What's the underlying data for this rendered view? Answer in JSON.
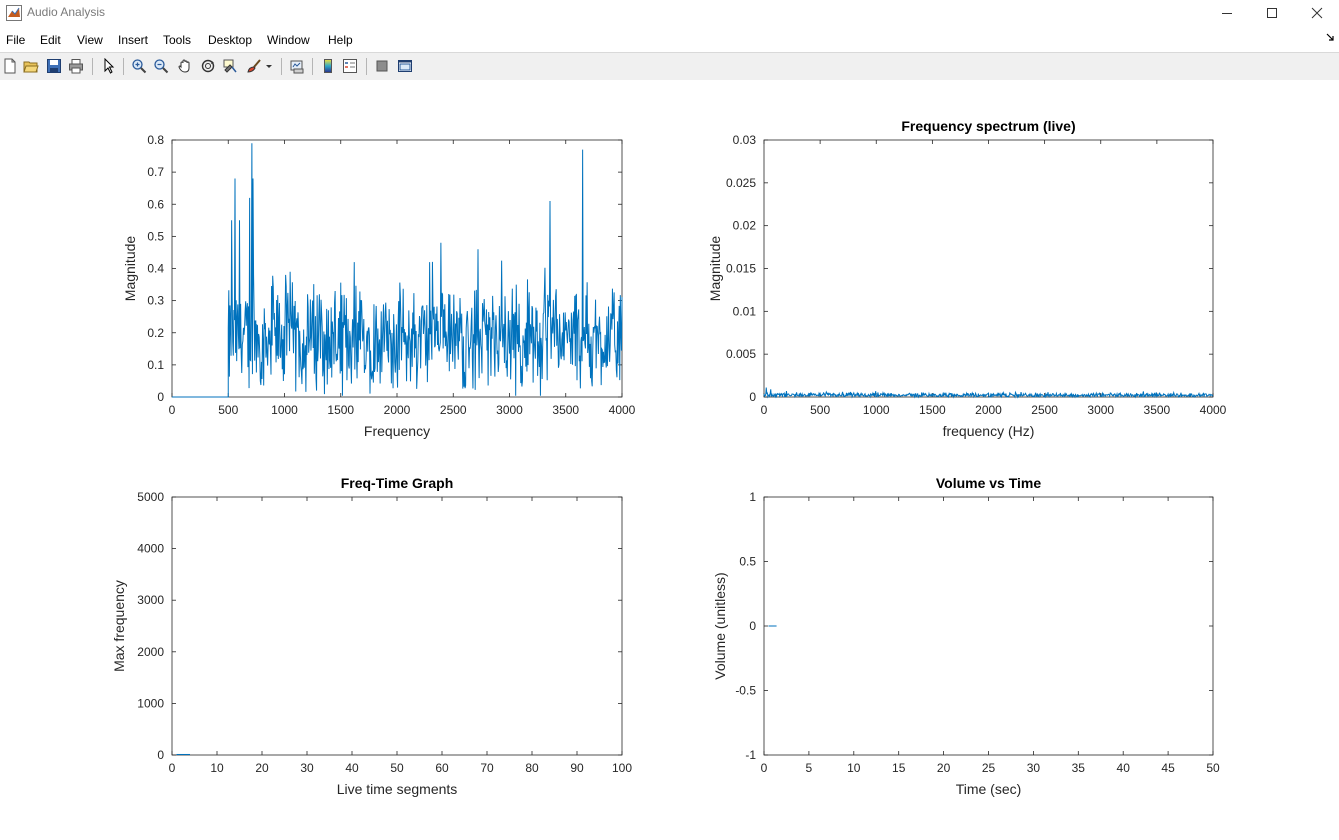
{
  "window": {
    "title": "Audio Analysis",
    "controls": {
      "minimize": "minimize-icon",
      "maximize": "maximize-icon",
      "close": "close-icon"
    }
  },
  "menu": {
    "items": [
      "File",
      "Edit",
      "View",
      "Insert",
      "Tools",
      "Desktop",
      "Window",
      "Help"
    ],
    "dock_icon": "dock-arrow-icon"
  },
  "toolbar": {
    "buttons": [
      "new-figure-icon",
      "open-file-icon",
      "save-icon",
      "print-icon",
      "edit-plot-icon",
      "zoom-in-icon",
      "zoom-out-icon",
      "pan-icon",
      "rotate-3d-icon",
      "data-cursor-icon",
      "brush-icon",
      "link-plot-icon",
      "insert-colorbar-icon",
      "insert-legend-icon",
      "hide-plot-tools-icon",
      "show-plot-tools-icon"
    ]
  },
  "colors": {
    "line": "#0072bd",
    "axis": "#262626",
    "background": "#ffffff"
  },
  "chart_data": [
    {
      "type": "line",
      "title": "",
      "xlabel": "Frequency",
      "ylabel": "Magnitude",
      "xlim": [
        0,
        4000
      ],
      "ylim": [
        0,
        0.8
      ],
      "xticks": [
        "0",
        "500",
        "1000",
        "1500",
        "2000",
        "2500",
        "3000",
        "3500",
        "4000"
      ],
      "yticks": [
        "0",
        "0.1",
        "0.2",
        "0.3",
        "0.4",
        "0.5",
        "0.6",
        "0.7",
        "0.8"
      ],
      "series": [
        {
          "x": [
            0,
            500
          ],
          "y": [
            0,
            0
          ]
        }
      ],
      "noise": {
        "x_start": 500,
        "x_end": 4000,
        "base": 0.18,
        "spread": 0.12,
        "peaks": [
          [
            530,
            0.55
          ],
          [
            560,
            0.68
          ],
          [
            600,
            0.55
          ],
          [
            690,
            0.62
          ],
          [
            710,
            0.79
          ],
          [
            720,
            0.68
          ],
          [
            1010,
            0.38
          ],
          [
            1050,
            0.39
          ],
          [
            1620,
            0.42
          ],
          [
            2290,
            0.42
          ],
          [
            2390,
            0.48
          ],
          [
            2720,
            0.46
          ],
          [
            3360,
            0.61
          ],
          [
            3650,
            0.77
          ]
        ]
      },
      "grid": false
    },
    {
      "type": "line",
      "title": "Frequency spectrum (live)",
      "xlabel": "frequency (Hz)",
      "ylabel": "Magnitude",
      "xlim": [
        0,
        4000
      ],
      "ylim": [
        0,
        0.03
      ],
      "xticks": [
        "0",
        "500",
        "1000",
        "1500",
        "2000",
        "2500",
        "3000",
        "3500",
        "4000"
      ],
      "yticks": [
        "0",
        "0.005",
        "0.01",
        "0.015",
        "0.02",
        "0.025",
        "0.03"
      ],
      "noise": {
        "x_start": 0,
        "x_end": 4000,
        "base": 0.0002,
        "spread": 0.0002,
        "peaks": [
          [
            20,
            0.0011
          ],
          [
            60,
            0.0009
          ],
          [
            200,
            0.0007
          ],
          [
            700,
            0.0006
          ],
          [
            3650,
            0.0005
          ]
        ]
      },
      "grid": false
    },
    {
      "type": "line",
      "title": "Freq-Time Graph",
      "xlabel": "Live time segments",
      "ylabel": "Max frequency",
      "xlim": [
        0,
        100
      ],
      "ylim": [
        0,
        5000
      ],
      "xticks": [
        "0",
        "10",
        "20",
        "30",
        "40",
        "50",
        "60",
        "70",
        "80",
        "90",
        "100"
      ],
      "yticks": [
        "0",
        "1000",
        "2000",
        "3000",
        "4000",
        "5000"
      ],
      "series": [
        {
          "x": [
            1,
            4
          ],
          "y": [
            10,
            10
          ]
        }
      ],
      "grid": false
    },
    {
      "type": "line",
      "title": "Volume vs Time",
      "xlabel": "Time (sec)",
      "ylabel": "Volume (unitless)",
      "xlim": [
        0,
        50
      ],
      "ylim": [
        -1,
        1
      ],
      "xticks": [
        "0",
        "5",
        "10",
        "15",
        "20",
        "25",
        "30",
        "35",
        "40",
        "45",
        "50"
      ],
      "yticks": [
        "-1",
        "-0.5",
        "0",
        "0.5",
        "1"
      ],
      "series": [
        {
          "x": [
            0.5,
            1.4
          ],
          "y": [
            0.0,
            0.0
          ]
        }
      ],
      "grid": false
    }
  ]
}
